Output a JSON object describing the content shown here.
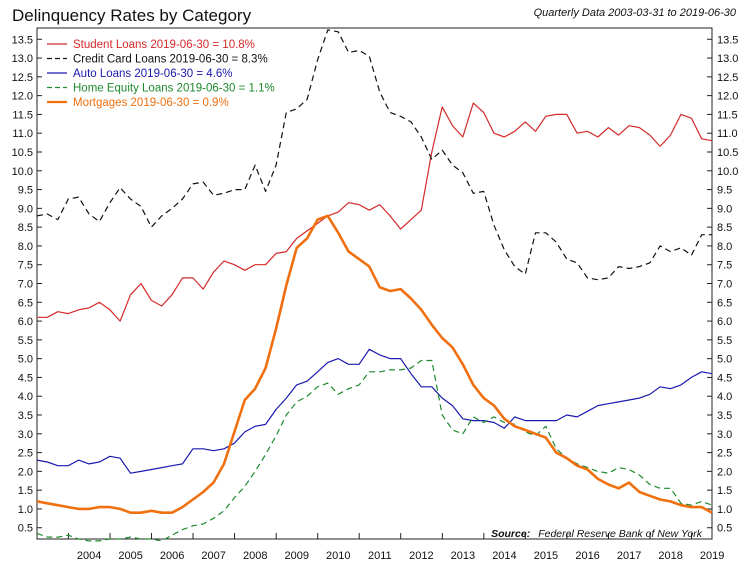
{
  "chart_data": {
    "type": "line",
    "title": "Delinquency Rates by Category",
    "subtitle": "Quarterly Data 2003-03-31 to 2019-06-30",
    "source_label": "Source:",
    "source_text": "Federal Reserve Bank of New York",
    "xlabel": "",
    "ylabel": "",
    "x_ticks": [
      "2004",
      "2005",
      "2006",
      "2007",
      "2008",
      "2009",
      "2010",
      "2011",
      "2012",
      "2013",
      "2014",
      "2015",
      "2016",
      "2017",
      "2018",
      "2019"
    ],
    "xlim": [
      "2003-03-31",
      "2019-06-30"
    ],
    "ylim": [
      0.2,
      13.8
    ],
    "y_ticks": [
      "0.5",
      "1.0",
      "1.5",
      "2.0",
      "2.5",
      "3.0",
      "3.5",
      "4.0",
      "4.5",
      "5.0",
      "5.5",
      "6.0",
      "6.5",
      "7.0",
      "7.5",
      "8.0",
      "8.5",
      "9.0",
      "9.5",
      "10.0",
      "10.5",
      "11.0",
      "11.5",
      "12.0",
      "12.5",
      "13.0",
      "13.5"
    ],
    "grid": false,
    "legend_position": "top-left",
    "x": [
      "2003-03-31",
      "2003-06-30",
      "2003-09-30",
      "2003-12-31",
      "2004-03-31",
      "2004-06-30",
      "2004-09-30",
      "2004-12-31",
      "2005-03-31",
      "2005-06-30",
      "2005-09-30",
      "2005-12-31",
      "2006-03-31",
      "2006-06-30",
      "2006-09-30",
      "2006-12-31",
      "2007-03-31",
      "2007-06-30",
      "2007-09-30",
      "2007-12-31",
      "2008-03-31",
      "2008-06-30",
      "2008-09-30",
      "2008-12-31",
      "2009-03-31",
      "2009-06-30",
      "2009-09-30",
      "2009-12-31",
      "2010-03-31",
      "2010-06-30",
      "2010-09-30",
      "2010-12-31",
      "2011-03-31",
      "2011-06-30",
      "2011-09-30",
      "2011-12-31",
      "2012-03-31",
      "2012-06-30",
      "2012-09-30",
      "2012-12-31",
      "2013-03-31",
      "2013-06-30",
      "2013-09-30",
      "2013-12-31",
      "2014-03-31",
      "2014-06-30",
      "2014-09-30",
      "2014-12-31",
      "2015-03-31",
      "2015-06-30",
      "2015-09-30",
      "2015-12-31",
      "2016-03-31",
      "2016-06-30",
      "2016-09-30",
      "2016-12-31",
      "2017-03-31",
      "2017-06-30",
      "2017-09-30",
      "2017-12-31",
      "2018-03-31",
      "2018-06-30",
      "2018-09-30",
      "2018-12-31",
      "2019-03-31",
      "2019-06-30"
    ],
    "series": [
      {
        "name": "Student Loans",
        "legend_label": "Student Loans  2019-06-30 = 10.8%",
        "color": "#d42a2a",
        "dash": "solid",
        "width": 1.2,
        "values": [
          6.1,
          6.1,
          6.25,
          6.2,
          6.3,
          6.35,
          6.5,
          6.3,
          6.0,
          6.7,
          7.0,
          6.55,
          6.4,
          6.7,
          7.15,
          7.15,
          6.85,
          7.3,
          7.6,
          7.5,
          7.35,
          7.5,
          7.5,
          7.8,
          7.85,
          8.2,
          8.4,
          8.6,
          8.8,
          8.9,
          9.15,
          9.1,
          8.95,
          9.1,
          8.8,
          8.45,
          8.7,
          8.95,
          10.5,
          11.7,
          11.2,
          10.9,
          11.8,
          11.55,
          11.0,
          10.9,
          11.05,
          11.3,
          11.05,
          11.45,
          11.5,
          11.5,
          11.0,
          11.05,
          10.9,
          11.15,
          10.95,
          11.2,
          11.15,
          10.95,
          10.65,
          10.95,
          11.5,
          11.4,
          10.85,
          10.8
        ]
      },
      {
        "name": "Credit Card Loans",
        "legend_label": "Credit Card Loans  2019-06-30 = 8.3%",
        "color": "#111111",
        "dash": "dashed",
        "width": 1.2,
        "values": [
          8.8,
          8.85,
          8.7,
          9.25,
          9.3,
          8.85,
          8.65,
          9.15,
          9.55,
          9.25,
          9.05,
          8.5,
          8.8,
          9.0,
          9.25,
          9.65,
          9.7,
          9.35,
          9.4,
          9.5,
          9.5,
          10.15,
          9.45,
          10.15,
          11.55,
          11.65,
          11.9,
          12.95,
          13.75,
          13.7,
          13.15,
          13.2,
          13.05,
          12.1,
          11.55,
          11.45,
          11.3,
          10.9,
          10.3,
          10.55,
          10.15,
          9.95,
          9.4,
          9.45,
          8.55,
          7.9,
          7.45,
          7.25,
          8.35,
          8.35,
          8.1,
          7.65,
          7.55,
          7.15,
          7.1,
          7.15,
          7.45,
          7.4,
          7.45,
          7.55,
          8.0,
          7.85,
          7.95,
          7.75,
          8.3,
          8.3
        ]
      },
      {
        "name": "Auto Loans",
        "legend_label": "Auto Loans  2019-06-30 = 4.6%",
        "color": "#1a1ab0",
        "dash": "solid",
        "width": 1.2,
        "values": [
          2.3,
          2.25,
          2.15,
          2.15,
          2.3,
          2.2,
          2.25,
          2.4,
          2.35,
          1.95,
          2.0,
          2.05,
          2.1,
          2.15,
          2.2,
          2.6,
          2.6,
          2.55,
          2.6,
          2.75,
          3.05,
          3.2,
          3.25,
          3.65,
          3.95,
          4.3,
          4.4,
          4.65,
          4.9,
          5.0,
          4.85,
          4.85,
          5.25,
          5.1,
          5.0,
          5.0,
          4.6,
          4.25,
          4.25,
          3.95,
          3.75,
          3.4,
          3.35,
          3.35,
          3.3,
          3.15,
          3.45,
          3.35,
          3.35,
          3.35,
          3.35,
          3.5,
          3.45,
          3.6,
          3.75,
          3.8,
          3.85,
          3.9,
          3.95,
          4.05,
          4.25,
          4.2,
          4.3,
          4.5,
          4.65,
          4.6
        ]
      },
      {
        "name": "Home Equity Loans",
        "legend_label": "Home Equity Loans  2019-06-30 = 1.1%",
        "color": "#1e8a2e",
        "dash": "dashed",
        "width": 1.2,
        "values": [
          0.35,
          0.25,
          0.25,
          0.3,
          0.2,
          0.15,
          0.15,
          0.2,
          0.2,
          0.25,
          0.2,
          0.2,
          0.15,
          0.3,
          0.45,
          0.55,
          0.6,
          0.75,
          0.95,
          1.3,
          1.6,
          2.0,
          2.45,
          2.95,
          3.5,
          3.85,
          4.0,
          4.25,
          4.35,
          4.05,
          4.2,
          4.3,
          4.65,
          4.65,
          4.7,
          4.7,
          4.75,
          4.95,
          4.95,
          3.5,
          3.1,
          3.0,
          3.45,
          3.3,
          3.45,
          3.3,
          3.25,
          3.05,
          2.95,
          3.2,
          2.6,
          2.35,
          2.2,
          2.1,
          2.0,
          1.95,
          2.1,
          2.05,
          1.9,
          1.65,
          1.55,
          1.55,
          1.15,
          1.1,
          1.2,
          1.1
        ]
      },
      {
        "name": "Mortgages",
        "legend_label": "Mortgages  2019-06-30 = 0.9%",
        "color": "#f07010",
        "dash": "solid",
        "width": 2.6,
        "values": [
          1.2,
          1.15,
          1.1,
          1.05,
          1.0,
          1.0,
          1.05,
          1.05,
          1.0,
          0.9,
          0.9,
          0.95,
          0.9,
          0.9,
          1.05,
          1.25,
          1.45,
          1.7,
          2.2,
          3.05,
          3.9,
          4.2,
          4.75,
          5.8,
          6.95,
          7.95,
          8.2,
          8.7,
          8.8,
          8.35,
          7.85,
          7.65,
          7.45,
          6.9,
          6.8,
          6.85,
          6.6,
          6.3,
          5.9,
          5.55,
          5.3,
          4.85,
          4.3,
          3.95,
          3.75,
          3.4,
          3.2,
          3.1,
          3.0,
          2.9,
          2.5,
          2.35,
          2.15,
          2.05,
          1.8,
          1.65,
          1.55,
          1.7,
          1.45,
          1.35,
          1.25,
          1.2,
          1.1,
          1.05,
          1.05,
          0.9
        ]
      }
    ]
  }
}
